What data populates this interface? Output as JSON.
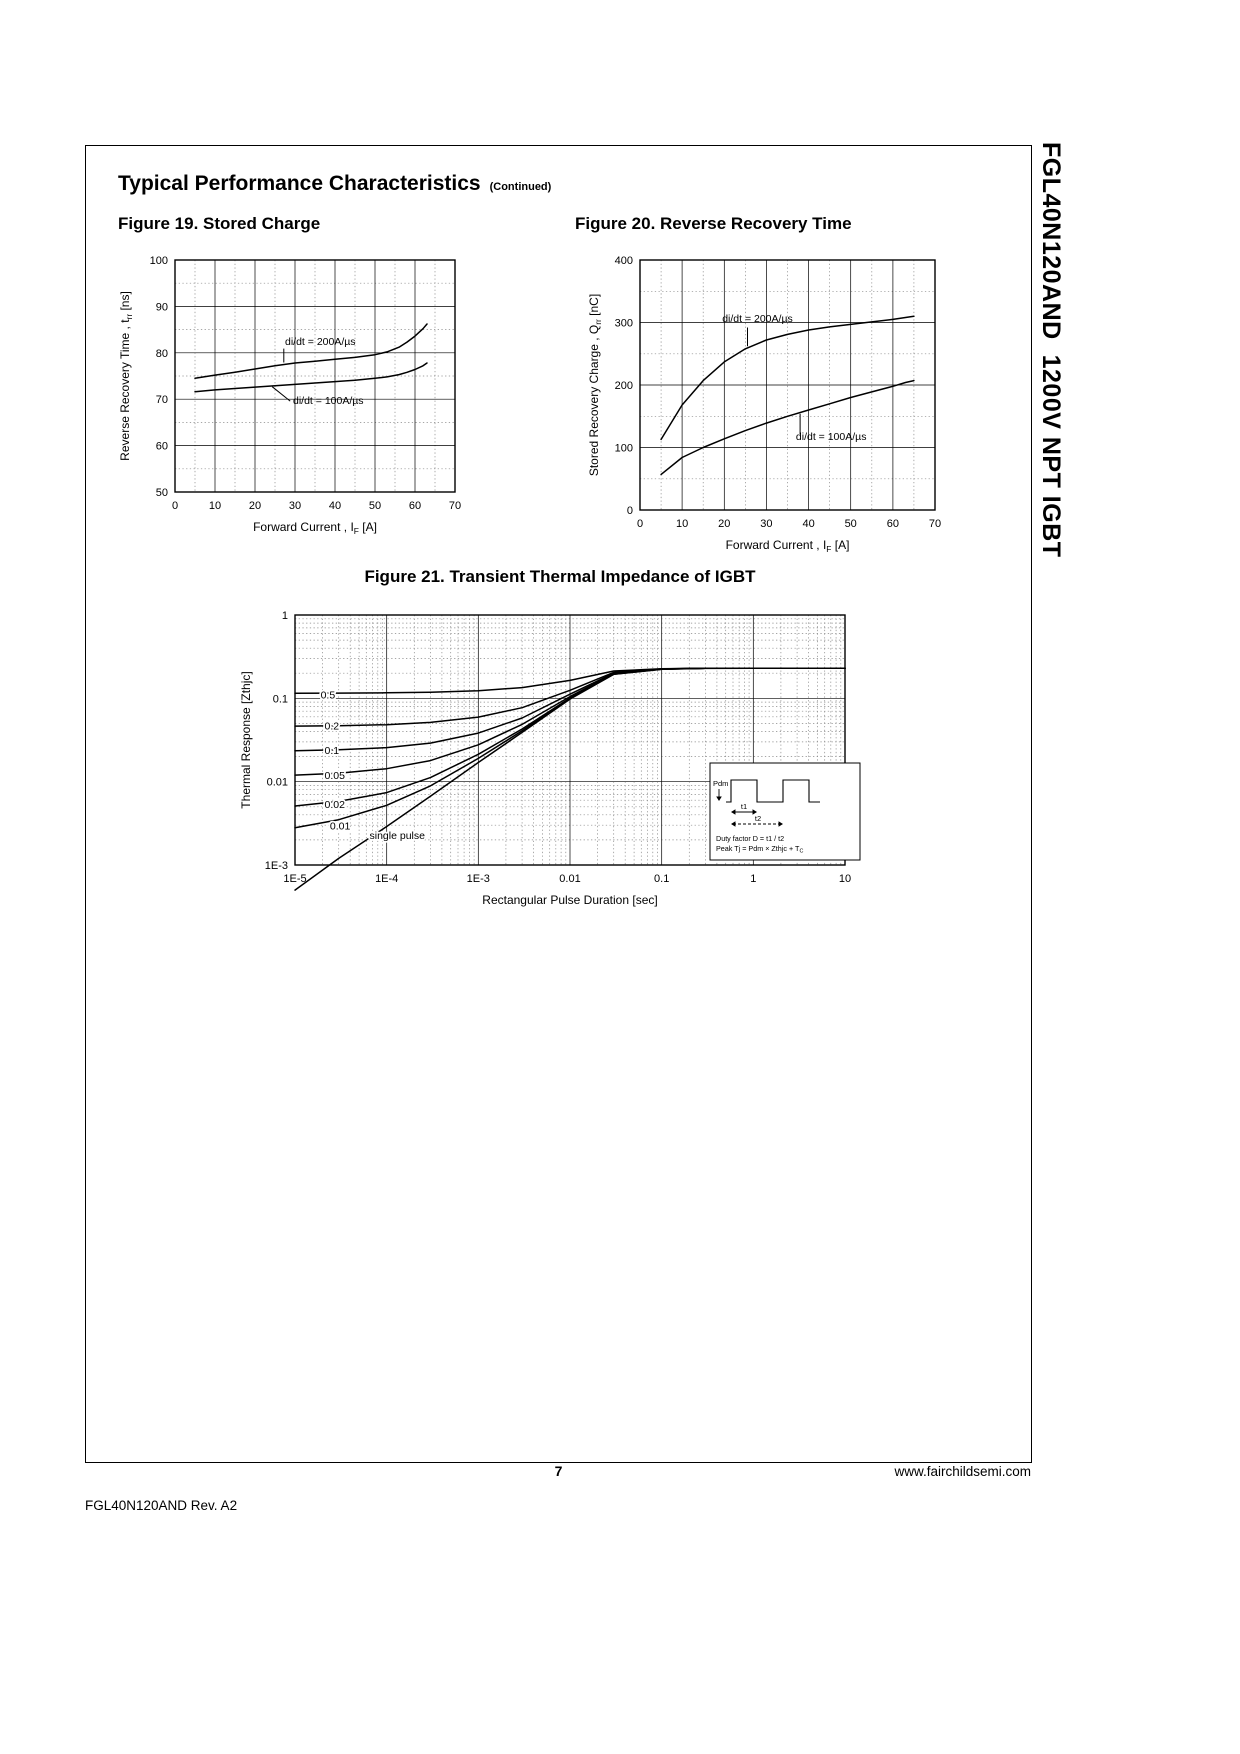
{
  "page": {
    "sidebar_text": "FGL40N120AND  1200V NPT IGBT",
    "header": {
      "title": "Typical Performance Characteristics",
      "continued": "(Continued)"
    },
    "footer": {
      "page_number": "7",
      "website": "www.fairchildsemi.com",
      "revision": "FGL40N120AND Rev. A2"
    }
  },
  "chart_data": [
    {
      "id": "fig19",
      "type": "line",
      "title": "Figure 19. Stored Charge",
      "xlabel": [
        {
          "t": "Forward Current , I"
        },
        {
          "t": "F",
          "sub": true
        },
        {
          "t": " [A]"
        }
      ],
      "ylabel": [
        {
          "t": "Reverse Recovery Time , t"
        },
        {
          "t": "rr",
          "sub": true
        },
        {
          "t": " [ns]"
        }
      ],
      "xlim": [
        0,
        70
      ],
      "ylim": [
        50,
        100
      ],
      "xticks": [
        0,
        10,
        20,
        30,
        40,
        50,
        60,
        70
      ],
      "xtick_labels": [
        "0",
        "10",
        "20",
        "30",
        "40",
        "50",
        "60",
        "70"
      ],
      "yticks": [
        50,
        60,
        70,
        80,
        90,
        100
      ],
      "ytick_labels": [
        "50",
        "60",
        "70",
        "80",
        "90",
        "100"
      ],
      "xminor": 5,
      "yminor": 5,
      "grid": true,
      "legend_position": "none",
      "series": [
        {
          "name": "di/dt = 200A/µs",
          "x": [
            5,
            10,
            15,
            20,
            25,
            30,
            35,
            40,
            45,
            50,
            53,
            56,
            58,
            60,
            62,
            63
          ],
          "y": [
            74.5,
            75.2,
            75.8,
            76.5,
            77.2,
            77.8,
            78.2,
            78.6,
            79.0,
            79.6,
            80.2,
            81.2,
            82.3,
            83.6,
            85.2,
            86.2
          ]
        },
        {
          "name": "di/dt = 100A/µs",
          "x": [
            5,
            10,
            15,
            20,
            25,
            30,
            35,
            40,
            45,
            50,
            53,
            56,
            58,
            60,
            62,
            63
          ],
          "y": [
            71.6,
            72.0,
            72.3,
            72.6,
            72.9,
            73.2,
            73.5,
            73.8,
            74.1,
            74.5,
            74.8,
            75.3,
            75.8,
            76.4,
            77.2,
            77.8
          ]
        }
      ],
      "annotations": [
        {
          "text": "di/dt = 200A/µs",
          "x": 27.5,
          "y": 81.7,
          "anchor": "start",
          "leader": [
            [
              27.2,
              80.9
            ],
            [
              27.2,
              77.9
            ]
          ]
        },
        {
          "text": "di/dt = 100A/µs",
          "x": 29.5,
          "y": 69.0,
          "anchor": "start",
          "leader": [
            [
              28.8,
              69.6
            ],
            [
              24.3,
              72.7
            ]
          ]
        }
      ]
    },
    {
      "id": "fig20",
      "type": "line",
      "title": "Figure 20. Reverse Recovery Time",
      "xlabel": [
        {
          "t": "Forward Current , I"
        },
        {
          "t": "F",
          "sub": true
        },
        {
          "t": " [A]"
        }
      ],
      "ylabel": [
        {
          "t": "Stored Recovery Charge , Q"
        },
        {
          "t": "rr",
          "sub": true
        },
        {
          "t": " [nC]"
        }
      ],
      "xlim": [
        0,
        70
      ],
      "ylim": [
        0,
        400
      ],
      "xticks": [
        0,
        10,
        20,
        30,
        40,
        50,
        60,
        70
      ],
      "xtick_labels": [
        "0",
        "10",
        "20",
        "30",
        "40",
        "50",
        "60",
        "70"
      ],
      "yticks": [
        0,
        100,
        200,
        300,
        400
      ],
      "ytick_labels": [
        "0",
        "100",
        "200",
        "300",
        "400"
      ],
      "xminor": 5,
      "yminor": 50,
      "grid": true,
      "legend_position": "none",
      "series": [
        {
          "name": "di/dt = 200A/µs",
          "x": [
            5,
            10,
            15,
            20,
            25,
            30,
            35,
            40,
            45,
            50,
            55,
            60,
            63,
            65
          ],
          "y": [
            113,
            168,
            207,
            237,
            258,
            272,
            281,
            288,
            293,
            297,
            301,
            305,
            308,
            310
          ]
        },
        {
          "name": "di/dt = 100A/µs",
          "x": [
            5,
            10,
            15,
            20,
            25,
            30,
            35,
            40,
            45,
            50,
            55,
            60,
            63,
            65
          ],
          "y": [
            57,
            84,
            100,
            114,
            127,
            139,
            150,
            160,
            170,
            180,
            189,
            198,
            204,
            207
          ]
        }
      ],
      "annotations": [
        {
          "text": "di/dt = 200A/µs",
          "x": 19.5,
          "y": 301,
          "anchor": "start",
          "leader": [
            [
              25.5,
              292
            ],
            [
              25.5,
              262
            ]
          ]
        },
        {
          "text": "di/dt = 100A/µs",
          "x": 37,
          "y": 112,
          "anchor": "start",
          "leader": [
            [
              38,
              121
            ],
            [
              38,
              154
            ]
          ]
        }
      ]
    },
    {
      "id": "fig21",
      "type": "line",
      "title": "Figure 21. Transient Thermal Impedance of IGBT",
      "xlabel": [
        {
          "t": "Rectangular Pulse Duration [sec]"
        }
      ],
      "ylabel": [
        {
          "t": "Thermal Response [Zthjc]"
        }
      ],
      "xlim": [
        1e-05,
        10
      ],
      "ylim": [
        0.001,
        1
      ],
      "xlog": true,
      "ylog": true,
      "xticks": [
        1e-05,
        0.0001,
        0.001,
        0.01,
        0.1,
        1,
        10
      ],
      "xtick_labels": [
        "1E-5",
        "1E-4",
        "1E-3",
        "0.01",
        "0.1",
        "1",
        "10"
      ],
      "yticks": [
        0.001,
        0.01,
        0.1,
        1
      ],
      "ytick_labels": [
        "1E-3",
        "0.01",
        "0.1",
        "1"
      ],
      "grid": true,
      "legend_position": "inline-labels",
      "x_shared": [
        1e-05,
        3e-05,
        0.0001,
        0.0003,
        0.001,
        0.003,
        0.01,
        0.03,
        0.1,
        0.3,
        1,
        3,
        10
      ],
      "series": [
        {
          "name": "0.5",
          "y": [
            0.1153,
            0.1156,
            0.1165,
            0.1184,
            0.1235,
            0.1345,
            0.164,
            0.213,
            0.226,
            0.229,
            0.23,
            0.23,
            0.23
          ]
        },
        {
          "name": "0.2",
          "y": [
            0.0464,
            0.047,
            0.0483,
            0.0514,
            0.0596,
            0.0772,
            0.125,
            0.205,
            0.2255,
            0.229,
            0.23,
            0.23,
            0.23
          ]
        },
        {
          "name": "0.1",
          "y": [
            0.0235,
            0.0241,
            0.0256,
            0.029,
            0.0383,
            0.0581,
            0.112,
            0.2,
            0.225,
            0.229,
            0.23,
            0.23,
            0.23
          ]
        },
        {
          "name": "0.05",
          "y": [
            0.012,
            0.0126,
            0.0143,
            0.0179,
            0.0277,
            0.0486,
            0.105,
            0.198,
            0.2245,
            0.229,
            0.23,
            0.23,
            0.23
          ]
        },
        {
          "name": "0.02",
          "y": [
            0.0051,
            0.0058,
            0.0074,
            0.0112,
            0.0213,
            0.0428,
            0.101,
            0.196,
            0.224,
            0.229,
            0.23,
            0.23,
            0.23
          ]
        },
        {
          "name": "0.01",
          "y": [
            0.0028,
            0.0035,
            0.0052,
            0.0089,
            0.019,
            0.0408,
            0.0995,
            0.195,
            0.2235,
            0.229,
            0.23,
            0.23,
            0.23
          ]
        },
        {
          "name": "single pulse",
          "y": [
            0.0005,
            0.0012,
            0.0029,
            0.0067,
            0.017,
            0.039,
            0.098,
            0.194,
            0.223,
            0.2285,
            0.23,
            0.23,
            0.23
          ]
        }
      ],
      "annotations": [
        {
          "text": "0.5",
          "x": 1.9e-05,
          "y": 0.1,
          "anchor": "start",
          "halo": true
        },
        {
          "text": "0.2",
          "x": 2.1e-05,
          "y": 0.042,
          "anchor": "start",
          "halo": true
        },
        {
          "text": "0.1",
          "x": 2.1e-05,
          "y": 0.0215,
          "anchor": "start",
          "halo": true
        },
        {
          "text": "0.05",
          "x": 2.1e-05,
          "y": 0.0107,
          "anchor": "start",
          "halo": true
        },
        {
          "text": "0.02",
          "x": 2.1e-05,
          "y": 0.00485,
          "anchor": "start",
          "halo": true
        },
        {
          "text": "0.01",
          "x": 2.4e-05,
          "y": 0.00265,
          "anchor": "start",
          "halo": true
        },
        {
          "text": "single pulse",
          "x": 6.5e-05,
          "y": 0.00205,
          "anchor": "start",
          "halo": true
        }
      ],
      "inset": {
        "pdm": "Pdm",
        "t1": "t1",
        "t2": "t2",
        "line1": "Duty factor D = t1 / t2",
        "line2": "Peak Tj = Pdm × Zthjc + T",
        "line2_sub": "C"
      }
    }
  ]
}
